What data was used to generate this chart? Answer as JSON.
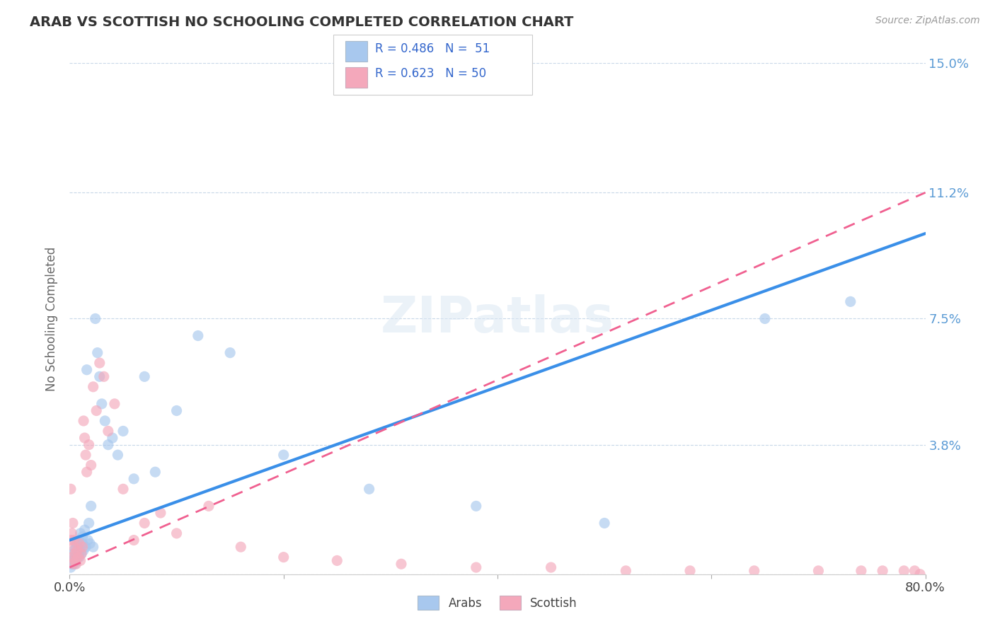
{
  "title": "ARAB VS SCOTTISH NO SCHOOLING COMPLETED CORRELATION CHART",
  "source": "Source: ZipAtlas.com",
  "ylabel": "No Schooling Completed",
  "xlim": [
    0.0,
    0.8
  ],
  "ylim": [
    0.0,
    0.15
  ],
  "yticks": [
    0.0,
    0.038,
    0.075,
    0.112,
    0.15
  ],
  "ytick_labels": [
    "",
    "3.8%",
    "7.5%",
    "11.2%",
    "15.0%"
  ],
  "xticks": [
    0.0,
    0.2,
    0.4,
    0.6,
    0.8
  ],
  "xtick_labels": [
    "0.0%",
    "",
    "",
    "",
    "80.0%"
  ],
  "legend_R1": "R = 0.486",
  "legend_N1": "N =  51",
  "legend_R2": "R = 0.623",
  "legend_N2": "N = 50",
  "color_arab": "#A8C8EE",
  "color_scottish": "#F4A8BB",
  "color_arab_line": "#3A8FE8",
  "color_scottish_line": "#F06090",
  "color_title": "#333333",
  "color_ytick": "#5B9BD5",
  "background": "#FFFFFF",
  "arab_x": [
    0.001,
    0.002,
    0.002,
    0.003,
    0.003,
    0.004,
    0.004,
    0.005,
    0.005,
    0.006,
    0.006,
    0.007,
    0.007,
    0.008,
    0.008,
    0.009,
    0.01,
    0.01,
    0.011,
    0.012,
    0.012,
    0.013,
    0.014,
    0.015,
    0.016,
    0.017,
    0.018,
    0.019,
    0.02,
    0.022,
    0.024,
    0.026,
    0.028,
    0.03,
    0.033,
    0.036,
    0.04,
    0.045,
    0.05,
    0.06,
    0.07,
    0.08,
    0.1,
    0.12,
    0.15,
    0.2,
    0.28,
    0.38,
    0.5,
    0.65,
    0.73
  ],
  "arab_y": [
    0.002,
    0.003,
    0.004,
    0.003,
    0.006,
    0.004,
    0.007,
    0.003,
    0.005,
    0.004,
    0.008,
    0.005,
    0.009,
    0.006,
    0.01,
    0.005,
    0.007,
    0.012,
    0.006,
    0.009,
    0.011,
    0.007,
    0.013,
    0.008,
    0.06,
    0.01,
    0.015,
    0.009,
    0.02,
    0.008,
    0.075,
    0.065,
    0.058,
    0.05,
    0.045,
    0.038,
    0.04,
    0.035,
    0.042,
    0.028,
    0.058,
    0.03,
    0.048,
    0.07,
    0.065,
    0.035,
    0.025,
    0.02,
    0.015,
    0.075,
    0.08
  ],
  "scottish_x": [
    0.001,
    0.001,
    0.002,
    0.002,
    0.003,
    0.003,
    0.004,
    0.004,
    0.005,
    0.005,
    0.006,
    0.007,
    0.008,
    0.009,
    0.01,
    0.011,
    0.012,
    0.013,
    0.014,
    0.015,
    0.016,
    0.018,
    0.02,
    0.022,
    0.025,
    0.028,
    0.032,
    0.036,
    0.042,
    0.05,
    0.06,
    0.07,
    0.085,
    0.1,
    0.13,
    0.16,
    0.2,
    0.25,
    0.31,
    0.38,
    0.45,
    0.52,
    0.58,
    0.64,
    0.7,
    0.74,
    0.76,
    0.78,
    0.79,
    0.795
  ],
  "scottish_y": [
    0.025,
    0.01,
    0.012,
    0.005,
    0.015,
    0.003,
    0.008,
    0.01,
    0.006,
    0.004,
    0.003,
    0.007,
    0.005,
    0.009,
    0.004,
    0.006,
    0.008,
    0.045,
    0.04,
    0.035,
    0.03,
    0.038,
    0.032,
    0.055,
    0.048,
    0.062,
    0.058,
    0.042,
    0.05,
    0.025,
    0.01,
    0.015,
    0.018,
    0.012,
    0.02,
    0.008,
    0.005,
    0.004,
    0.003,
    0.002,
    0.002,
    0.001,
    0.001,
    0.001,
    0.001,
    0.001,
    0.001,
    0.001,
    0.001,
    0.0
  ]
}
